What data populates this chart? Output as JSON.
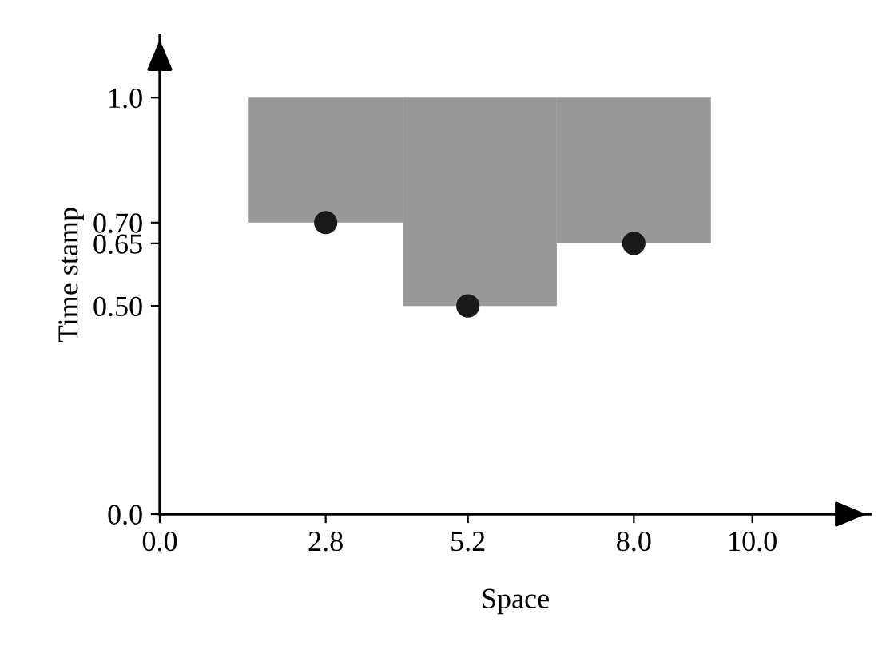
{
  "chart_data": {
    "type": "scatter",
    "xlabel": "Space",
    "ylabel": "Time stamp",
    "xlim": [
      0,
      12
    ],
    "ylim": [
      0,
      1.15
    ],
    "xticks": [
      {
        "value": 0,
        "label": "0.0"
      },
      2.8,
      5.2,
      {
        "value": 8,
        "label": "8.0"
      },
      {
        "value": 10,
        "label": "10.0"
      }
    ],
    "yticks": [
      {
        "value": 0,
        "label": "0.0"
      },
      {
        "value": 0.5,
        "label": "0.50"
      },
      0.65,
      {
        "value": 0.7,
        "label": "0.70"
      },
      {
        "value": 1,
        "label": "1.0"
      }
    ],
    "grid": false,
    "legend": false,
    "marker": "circle",
    "series": [
      {
        "type": "bar",
        "color": "#999999",
        "x": [
          2.8,
          5.4,
          8.0
        ],
        "base": [
          0.7,
          0.5,
          0.65
        ],
        "values": [
          0.3,
          0.5,
          0.35
        ]
      },
      {
        "color": "#1a1a1a",
        "x": [
          2.8,
          5.2,
          8.0
        ],
        "values": [
          0.7,
          0.5,
          0.65
        ]
      }
    ]
  }
}
